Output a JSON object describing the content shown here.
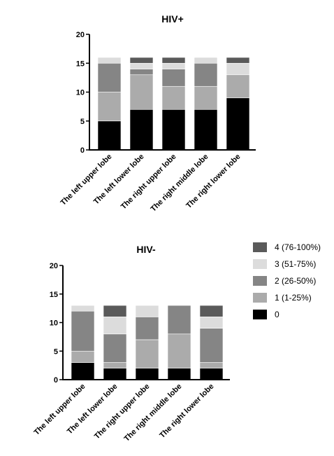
{
  "legend": {
    "entries": [
      {
        "label": "4 (76-100%)",
        "color": "#5a5a5a"
      },
      {
        "label": "3 (51-75%)",
        "color": "#dcdcdc"
      },
      {
        "label": "2 (26-50%)",
        "color": "#858585"
      },
      {
        "label": "1 (1-25%)",
        "color": "#ababab"
      },
      {
        "label": "0",
        "color": "#000000"
      }
    ]
  },
  "chart_data": [
    {
      "type": "bar",
      "stacked": true,
      "title": "HIV+",
      "xlabel": "",
      "ylabel": "",
      "ylim": [
        0,
        20
      ],
      "yticks": [
        "0",
        "5",
        "10",
        "15",
        "20"
      ],
      "categories": [
        "The left upper lobe",
        "The left lower lobe",
        "The right upper lobe",
        "The right middle lobe",
        "The right lower lobe"
      ],
      "series": [
        {
          "name": "0",
          "color": "#000000",
          "values": [
            5,
            7,
            7,
            7,
            9
          ]
        },
        {
          "name": "1 (1-25%)",
          "color": "#ababab",
          "values": [
            5,
            6,
            4,
            4,
            4
          ]
        },
        {
          "name": "2 (26-50%)",
          "color": "#858585",
          "values": [
            5,
            1,
            3,
            4,
            0
          ]
        },
        {
          "name": "3 (51-75%)",
          "color": "#dcdcdc",
          "values": [
            1,
            1,
            1,
            1,
            2
          ]
        },
        {
          "name": "4 (76-100%)",
          "color": "#5a5a5a",
          "values": [
            0,
            1,
            1,
            0,
            1
          ]
        }
      ],
      "grid": false,
      "legend": "right"
    },
    {
      "type": "bar",
      "stacked": true,
      "title": "HIV-",
      "xlabel": "",
      "ylabel": "",
      "ylim": [
        0,
        20
      ],
      "yticks": [
        "0",
        "5",
        "10",
        "15",
        "20"
      ],
      "categories": [
        "The left upper lobe",
        "The left lower lobe",
        "The right upper lobe",
        "The right middle lobe",
        "The right lower lobe"
      ],
      "series": [
        {
          "name": "0",
          "color": "#000000",
          "values": [
            3,
            2,
            2,
            2,
            2
          ]
        },
        {
          "name": "1 (1-25%)",
          "color": "#ababab",
          "values": [
            2,
            1,
            5,
            6,
            1
          ]
        },
        {
          "name": "2 (26-50%)",
          "color": "#858585",
          "values": [
            7,
            5,
            4,
            5,
            6
          ]
        },
        {
          "name": "3 (51-75%)",
          "color": "#dcdcdc",
          "values": [
            1,
            3,
            2,
            0,
            2
          ]
        },
        {
          "name": "4 (76-100%)",
          "color": "#5a5a5a",
          "values": [
            0,
            2,
            0,
            0,
            2
          ]
        }
      ],
      "grid": false,
      "legend": "right"
    }
  ]
}
